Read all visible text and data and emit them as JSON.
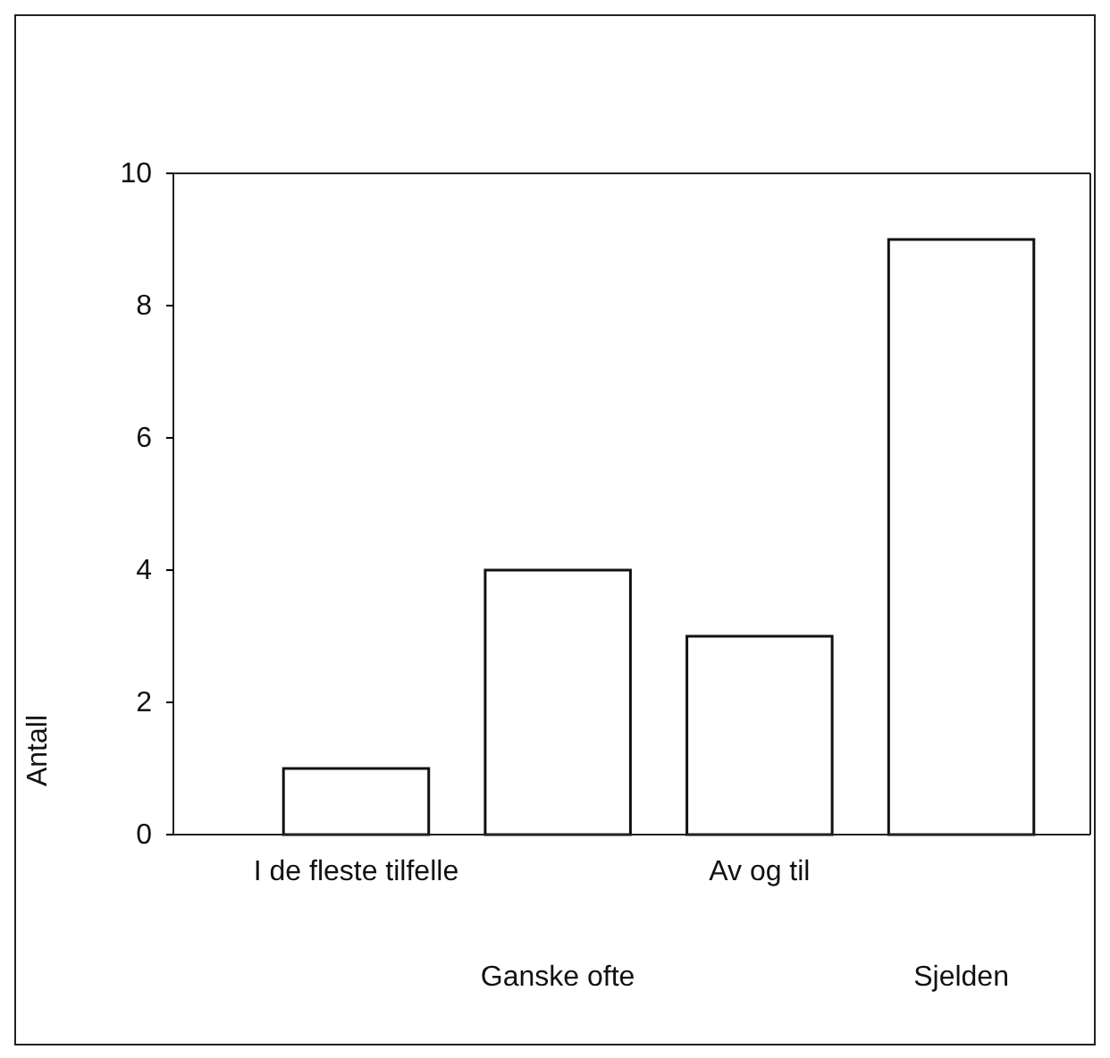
{
  "chart_data": {
    "type": "bar",
    "categories": [
      "I de fleste tilfelle",
      "Ganske ofte",
      "Av og til",
      "Sjelden"
    ],
    "values": [
      1,
      4,
      3,
      9
    ],
    "colors": [
      "#ffffff",
      "#ffffff",
      "#ffffff",
      "#ffffff"
    ],
    "ylabel": "Antall",
    "ylim": [
      0,
      10
    ],
    "yticks": [
      0,
      2,
      4,
      6,
      8,
      10
    ]
  }
}
